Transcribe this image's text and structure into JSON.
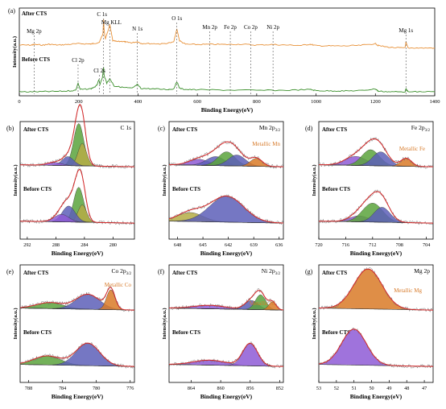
{
  "colors": {
    "after": "#e8923a",
    "before": "#3a8f2a",
    "envelope": "#d62728",
    "raw": "#777777",
    "purple": "#8e5bd6",
    "indigo": "#5d5fb8",
    "green": "#5aa33c",
    "olive": "#b5ad45",
    "darkolive": "#4d6b2c",
    "metal": "#d97a27",
    "annot": "#d77a2a",
    "axis": "#000000",
    "dash": "#555555"
  },
  "chart_data": [
    {
      "panel": "(a)",
      "type": "line",
      "xlabel": "Binding Energy(eV)",
      "ylabel": "Intensity(a.u.)",
      "xlim": [
        0,
        1400
      ],
      "xticks": [
        0,
        200,
        400,
        600,
        800,
        1000,
        1200,
        1400
      ],
      "labels": {
        "after": "After CTS",
        "before": "Before CTS"
      },
      "series": [
        {
          "name": "After CTS",
          "x": [
            0,
            40,
            50,
            80,
            100,
            130,
            160,
            200,
            240,
            250,
            270,
            282,
            284,
            286,
            290,
            305,
            315,
            330,
            350,
            360,
            380,
            398,
            410,
            450,
            480,
            520,
            531,
            540,
            560,
            600,
            650,
            700,
            750,
            800,
            850,
            900,
            950,
            980,
            1000,
            1050,
            1100,
            1150,
            1200,
            1210,
            1250,
            1300,
            1303,
            1310,
            1350,
            1400
          ],
          "y": [
            1.0,
            1.0,
            1.02,
            1.0,
            1.03,
            1.0,
            1.02,
            1.05,
            1.04,
            1.05,
            1.1,
            1.4,
            1.9,
            1.5,
            1.2,
            1.7,
            1.15,
            1.12,
            1.13,
            1.1,
            1.08,
            1.12,
            1.06,
            1.05,
            1.04,
            1.1,
            1.55,
            1.15,
            1.03,
            1.02,
            1.03,
            1.02,
            1.03,
            1.0,
            1.02,
            1.0,
            0.99,
            1.03,
            0.98,
            0.97,
            0.97,
            0.99,
            1.05,
            0.98,
            0.92,
            0.9,
            1.1,
            0.9,
            0.9,
            0.9
          ]
        },
        {
          "name": "Before CTS",
          "x": [
            0,
            50,
            100,
            150,
            190,
            198,
            205,
            240,
            260,
            268,
            272,
            280,
            284,
            286,
            295,
            305,
            320,
            350,
            380,
            398,
            410,
            450,
            500,
            520,
            531,
            540,
            560,
            600,
            700,
            800,
            900,
            980,
            1000,
            1050,
            1100,
            1150,
            1200,
            1210,
            1250,
            1300,
            1303,
            1310,
            1350,
            1400
          ],
          "y": [
            0.0,
            0.0,
            0.01,
            0.02,
            0.05,
            0.3,
            0.08,
            0.1,
            0.2,
            0.4,
            0.25,
            0.5,
            0.85,
            0.55,
            0.3,
            0.45,
            0.2,
            0.15,
            0.12,
            0.25,
            0.12,
            0.1,
            0.08,
            0.1,
            0.35,
            0.12,
            0.08,
            0.07,
            0.06,
            0.05,
            0.05,
            0.08,
            0.04,
            0.03,
            0.03,
            0.04,
            0.1,
            0.02,
            0.0,
            0.0,
            0.1,
            0.0,
            0.0,
            0.0
          ]
        }
      ],
      "annotations": [
        {
          "text": "C 1s",
          "x": 284
        },
        {
          "text": "Mg KLL",
          "x": 305
        },
        {
          "text": "N 1s",
          "x": 398
        },
        {
          "text": "O 1s",
          "x": 531
        },
        {
          "text": "Mn 2p",
          "x": 642
        },
        {
          "text": "Fe 2p",
          "x": 711
        },
        {
          "text": "Co 2p",
          "x": 780
        },
        {
          "text": "Ni 2p",
          "x": 855
        },
        {
          "text": "Mg 1s",
          "x": 1303
        },
        {
          "text": "Mg 2p",
          "x": 50
        },
        {
          "text": "Cl 2p",
          "x": 198
        },
        {
          "text": "Cl 2s",
          "x": 270
        }
      ]
    },
    {
      "panel": "(b)",
      "type": "area",
      "title": "C 1s",
      "xlabel": "Binding Energy(eV)",
      "ylabel": "Intensity(a.u.)",
      "xlim": [
        293,
        277
      ],
      "xticks": [
        292,
        288,
        284,
        280
      ],
      "labels": {
        "after": "After CTS",
        "before": "Before CTS"
      },
      "peaks_after": [
        {
          "center": 284.8,
          "height": 0.85,
          "width": 0.7,
          "color": "green"
        },
        {
          "center": 284.3,
          "height": 0.45,
          "width": 0.6,
          "color": "olive"
        },
        {
          "center": 286.3,
          "height": 0.18,
          "width": 0.8,
          "color": "indigo"
        },
        {
          "center": 288.2,
          "height": 0.06,
          "width": 1.0,
          "color": "purple"
        }
      ],
      "peaks_before": [
        {
          "center": 284.8,
          "height": 0.7,
          "width": 0.7,
          "color": "green"
        },
        {
          "center": 284.3,
          "height": 0.35,
          "width": 0.6,
          "color": "olive"
        },
        {
          "center": 286.2,
          "height": 0.32,
          "width": 0.9,
          "color": "indigo"
        },
        {
          "center": 287.2,
          "height": 0.15,
          "width": 1.0,
          "color": "purple"
        }
      ]
    },
    {
      "panel": "(c)",
      "type": "area",
      "title": "Mn 2p",
      "title_sub": "3/2",
      "metal_label": "Metallic Mn",
      "xlabel": "Binding Energy(eV)",
      "ylabel": "Intensity(a.u.)",
      "xlim": [
        649,
        635.5
      ],
      "xticks": [
        648,
        645,
        642,
        639,
        636
      ],
      "labels": {
        "after": "After CTS",
        "before": "Before CTS"
      },
      "peaks_after": [
        {
          "center": 645.5,
          "height": 0.12,
          "width": 1.2,
          "color": "purple"
        },
        {
          "center": 643.5,
          "height": 0.18,
          "width": 1.1,
          "color": "indigo"
        },
        {
          "center": 642.2,
          "height": 0.28,
          "width": 1.0,
          "color": "green"
        },
        {
          "center": 641.0,
          "height": 0.22,
          "width": 1.0,
          "color": "indigo"
        },
        {
          "center": 638.7,
          "height": 0.16,
          "width": 0.7,
          "color": "metal"
        }
      ],
      "peaks_before": [
        {
          "center": 646.5,
          "height": 0.18,
          "width": 1.5,
          "color": "olive"
        },
        {
          "center": 642.2,
          "height": 0.52,
          "width": 2.0,
          "color": "indigo"
        }
      ]
    },
    {
      "panel": "(d)",
      "type": "area",
      "title": "Fe 2p",
      "title_sub": "3/2",
      "metal_label": "Metallic Fe",
      "xlabel": "Binding Energy(eV)",
      "ylabel": "Intensity(a.u.)",
      "xlim": [
        720,
        703
      ],
      "xticks": [
        720,
        716,
        712,
        708,
        704
      ],
      "labels": {
        "after": "After CTS",
        "before": "Before CTS"
      },
      "peaks_after": [
        {
          "center": 714.5,
          "height": 0.18,
          "width": 1.6,
          "color": "purple"
        },
        {
          "center": 712.3,
          "height": 0.32,
          "width": 1.3,
          "color": "green"
        },
        {
          "center": 710.8,
          "height": 0.28,
          "width": 1.2,
          "color": "indigo"
        },
        {
          "center": 707.0,
          "height": 0.16,
          "width": 0.8,
          "color": "metal"
        }
      ],
      "peaks_before": [
        {
          "center": 714.0,
          "height": 0.12,
          "width": 1.4,
          "color": "purple"
        },
        {
          "center": 712.0,
          "height": 0.38,
          "width": 1.5,
          "color": "green"
        },
        {
          "center": 710.6,
          "height": 0.3,
          "width": 1.2,
          "color": "indigo"
        }
      ]
    },
    {
      "panel": "(e)",
      "type": "area",
      "title": "Co 2p",
      "title_sub": "3/2",
      "metal_label": "Metallic Co",
      "xlabel": "Binding Energy(eV)",
      "ylabel": "Intensity(a.u.)",
      "xlim": [
        789,
        775.5
      ],
      "xticks": [
        788,
        784,
        780,
        776
      ],
      "labels": {
        "after": "After CTS",
        "before": "Before CTS"
      },
      "peaks_after": [
        {
          "center": 785.5,
          "height": 0.12,
          "width": 1.6,
          "color": "green"
        },
        {
          "center": 781.0,
          "height": 0.3,
          "width": 1.4,
          "color": "indigo"
        },
        {
          "center": 778.3,
          "height": 0.4,
          "width": 0.5,
          "color": "metal"
        }
      ],
      "peaks_before": [
        {
          "center": 785.8,
          "height": 0.18,
          "width": 1.6,
          "color": "green"
        },
        {
          "center": 781.0,
          "height": 0.45,
          "width": 1.4,
          "color": "indigo"
        }
      ]
    },
    {
      "panel": "(f)",
      "type": "area",
      "title": "Ni 2p",
      "title_sub": "3/2",
      "metal_label": "Metallic Ni",
      "xlabel": "Binding Energy(eV)",
      "ylabel": "Intensity(a.u.)",
      "xlim": [
        867,
        851.5
      ],
      "xticks": [
        864,
        860,
        856,
        852
      ],
      "labels": {
        "after": "After CTS",
        "before": "Before CTS"
      },
      "peaks_after": [
        {
          "center": 861.5,
          "height": 0.07,
          "width": 2.2,
          "color": "purple"
        },
        {
          "center": 855.8,
          "height": 0.18,
          "width": 0.9,
          "color": "indigo"
        },
        {
          "center": 854.6,
          "height": 0.3,
          "width": 0.7,
          "color": "green"
        },
        {
          "center": 853.0,
          "height": 0.16,
          "width": 0.5,
          "color": "metal"
        }
      ],
      "peaks_before": [
        {
          "center": 861.5,
          "height": 0.1,
          "width": 2.2,
          "color": "purple"
        },
        {
          "center": 856.0,
          "height": 0.45,
          "width": 1.0,
          "color": "purple"
        }
      ]
    },
    {
      "panel": "(g)",
      "type": "area",
      "title": "Mg 2p",
      "metal_label": "Metallic Mg",
      "xlabel": "Binding Energy(eV)",
      "ylabel": "Intensity(a.u.)",
      "xlim": [
        53,
        46.5
      ],
      "xticks": [
        53,
        52,
        51,
        50,
        49,
        48,
        47
      ],
      "labels": {
        "after": "After CTS",
        "before": "Before CTS"
      },
      "peaks_after": [
        {
          "center": 50.2,
          "height": 0.8,
          "width": 0.8,
          "color": "metal"
        }
      ],
      "peaks_before": [
        {
          "center": 51.0,
          "height": 0.72,
          "width": 0.7,
          "color": "purple"
        }
      ]
    }
  ]
}
